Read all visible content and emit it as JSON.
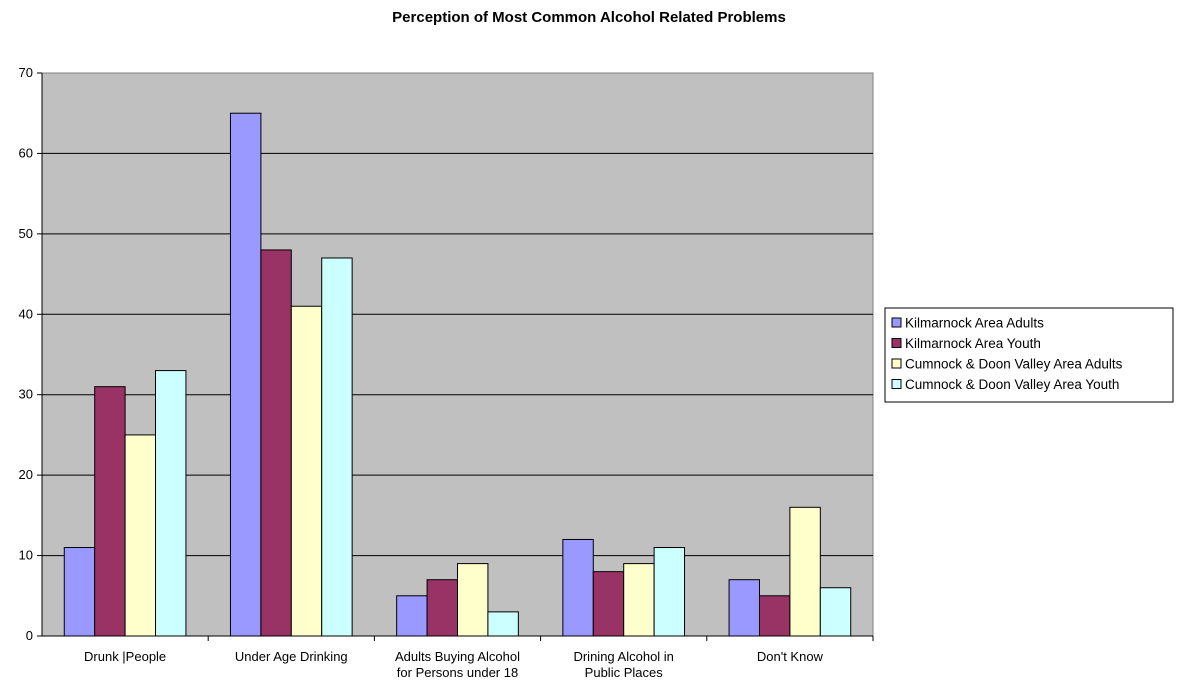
{
  "chart_data": {
    "type": "bar",
    "title": "Perception of Most Common Alcohol Related Problems",
    "xlabel": "",
    "ylabel": "",
    "ylim": [
      0,
      70
    ],
    "yticks": [
      0,
      10,
      20,
      30,
      40,
      50,
      60,
      70
    ],
    "grid": true,
    "legend_position": "right",
    "plot_background": "#c0c0c0",
    "categories": [
      [
        "Drunk |People"
      ],
      [
        "Under Age Drinking"
      ],
      [
        "Adults Buying Alcohol",
        "for Persons under 18"
      ],
      [
        "Drining Alcohol in",
        "Public Places"
      ],
      [
        "Don't Know"
      ]
    ],
    "series": [
      {
        "name": "Kilmarnock Area Adults",
        "color": "#9999ff",
        "values": [
          11,
          65,
          5,
          12,
          7
        ]
      },
      {
        "name": "Kilmarnock Area Youth",
        "color": "#993366",
        "values": [
          31,
          48,
          7,
          8,
          5
        ]
      },
      {
        "name": "Cumnock & Doon Valley Area Adults",
        "color": "#ffffcc",
        "values": [
          25,
          41,
          9,
          9,
          16
        ]
      },
      {
        "name": "Cumnock & Doon Valley Area Youth",
        "color": "#ccffff",
        "values": [
          33,
          47,
          3,
          11,
          6
        ]
      }
    ]
  }
}
